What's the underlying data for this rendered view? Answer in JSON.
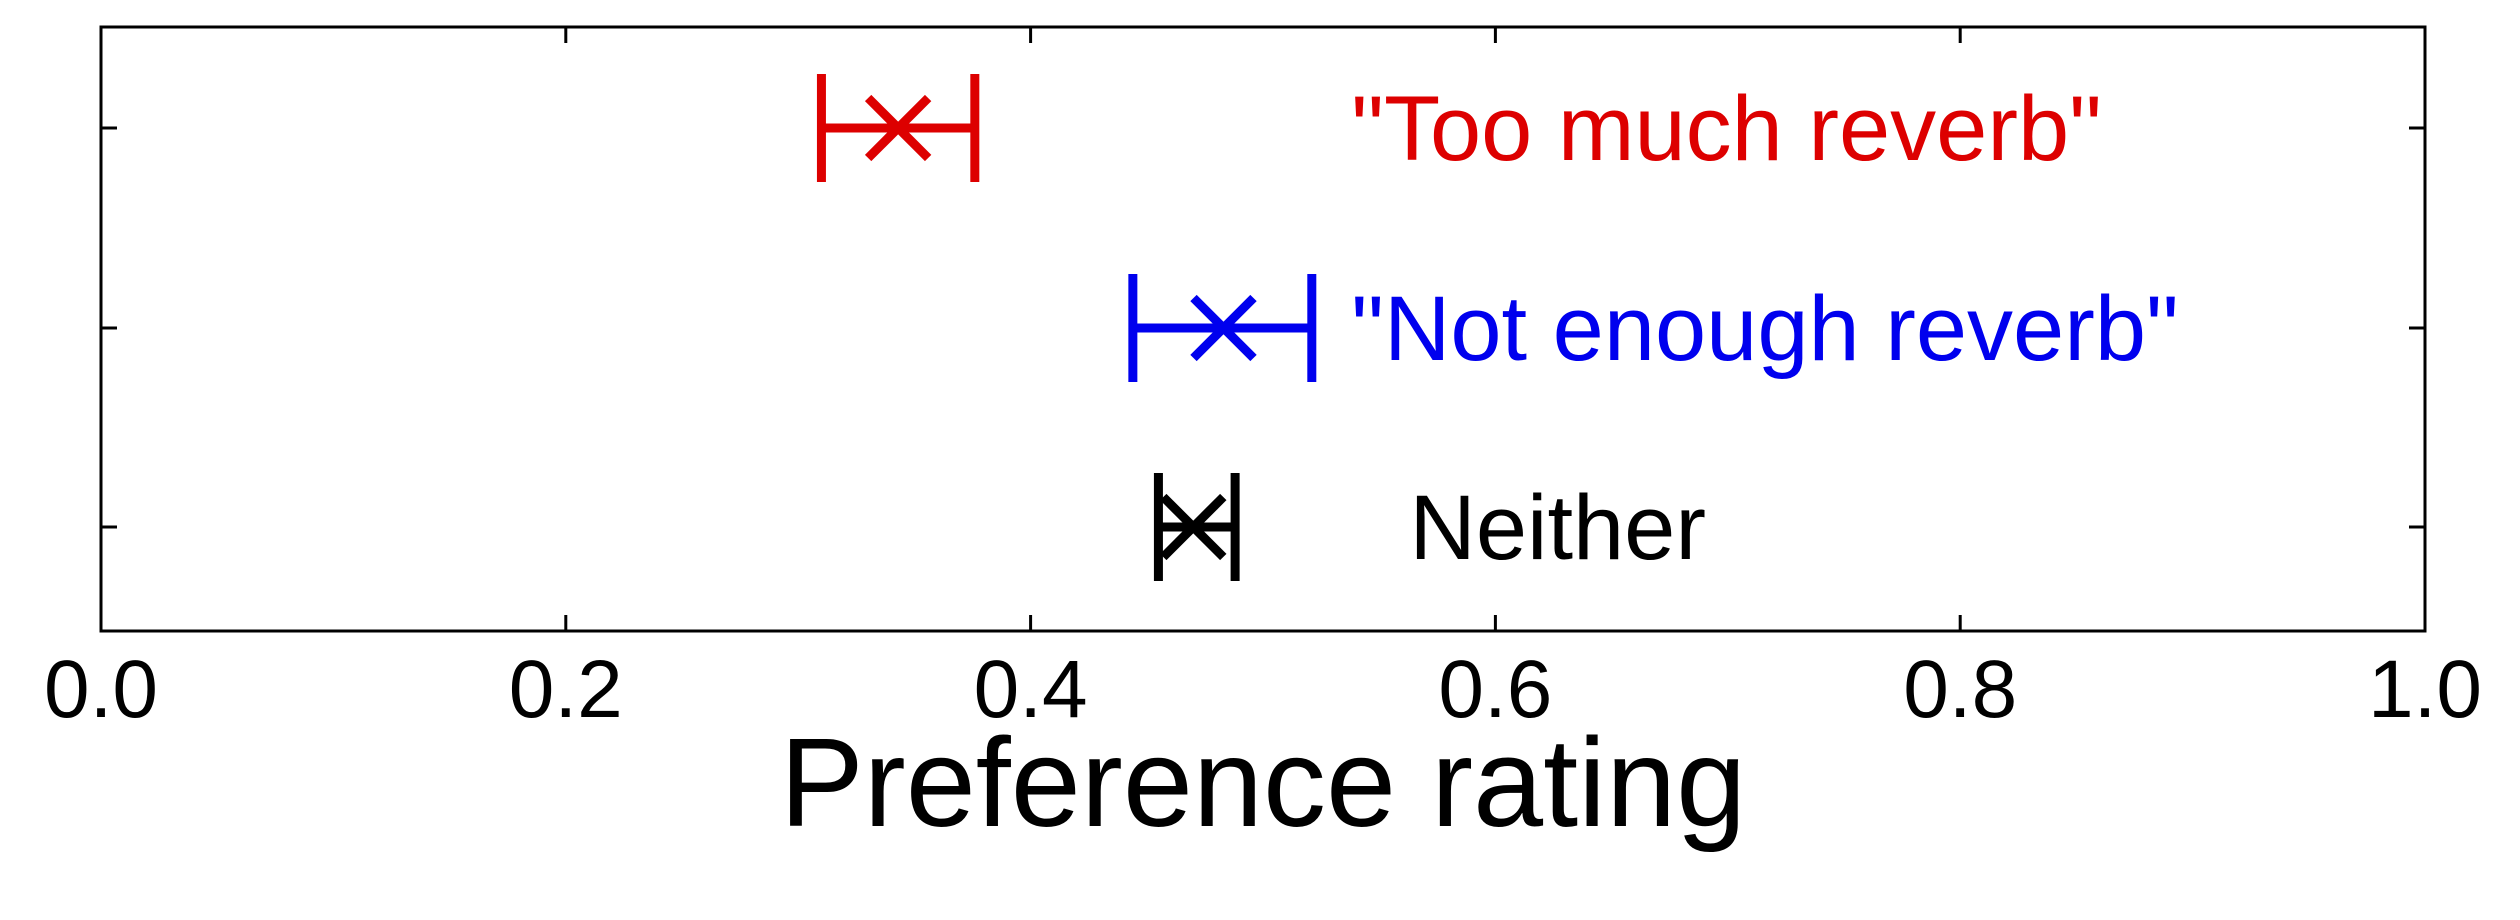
{
  "chart_data": {
    "type": "errorbar",
    "title": "",
    "xlabel": "Preference rating",
    "ylabel": "",
    "xlim": [
      0.0,
      1.0
    ],
    "xticks": [
      "0.0",
      "0.2",
      "0.4",
      "0.6",
      "0.8",
      "1.0"
    ],
    "grid": false,
    "series": [
      {
        "name": "\"Too much reverb\"",
        "color": "#dd0000",
        "mean": 0.343,
        "low": 0.31,
        "high": 0.376,
        "label_x": 0.538
      },
      {
        "name": "\"Not enough reverb\"",
        "color": "#0000ee",
        "mean": 0.483,
        "low": 0.444,
        "high": 0.521,
        "label_x": 0.538
      },
      {
        "name": "Neither",
        "color": "#000000",
        "mean": 0.47,
        "low": 0.455,
        "high": 0.488,
        "label_x": 0.563
      }
    ]
  }
}
